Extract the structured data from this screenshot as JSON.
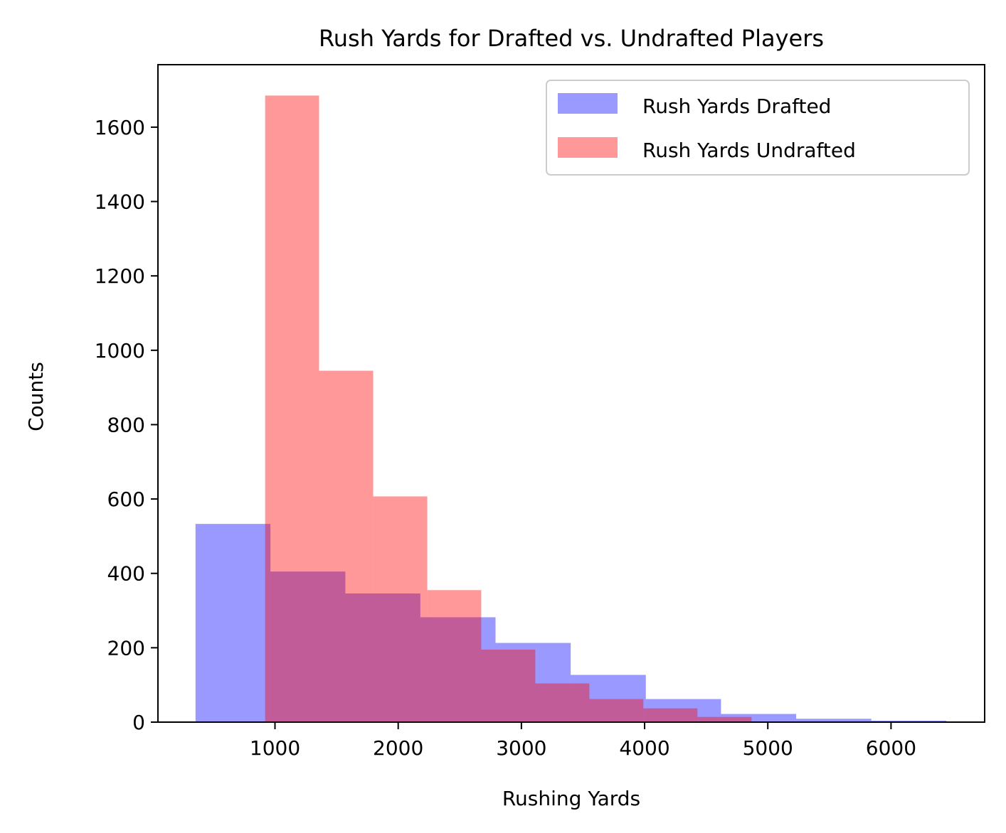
{
  "chart_data": {
    "type": "histogram",
    "title": "Rush Yards for Drafted vs. Undrafted Players",
    "xlabel": "Rushing Yards",
    "ylabel": "Counts",
    "xlim": [
      50,
      6760
    ],
    "ylim": [
      0,
      1768
    ],
    "xticks": [
      1000,
      2000,
      3000,
      4000,
      5000,
      6000
    ],
    "yticks": [
      0,
      200,
      400,
      600,
      800,
      1000,
      1200,
      1400,
      1600
    ],
    "grid": false,
    "legend": "top-right",
    "series": [
      {
        "name": "Rush Yards Drafted",
        "color": "#9999fe",
        "bins": [
          {
            "x0": 355,
            "x1": 963,
            "count": 533
          },
          {
            "x0": 963,
            "x1": 1571,
            "count": 405
          },
          {
            "x0": 1571,
            "x1": 2180,
            "count": 346
          },
          {
            "x0": 2180,
            "x1": 2790,
            "count": 282
          },
          {
            "x0": 2790,
            "x1": 3400,
            "count": 213
          },
          {
            "x0": 3400,
            "x1": 4010,
            "count": 127
          },
          {
            "x0": 4010,
            "x1": 4620,
            "count": 62
          },
          {
            "x0": 4620,
            "x1": 5230,
            "count": 22
          },
          {
            "x0": 5230,
            "x1": 5840,
            "count": 9
          },
          {
            "x0": 5840,
            "x1": 6450,
            "count": 4
          }
        ]
      },
      {
        "name": "Rush Yards Undrafted",
        "color": "#ff9999",
        "bins": [
          {
            "x0": 920,
            "x1": 1358,
            "count": 1685
          },
          {
            "x0": 1358,
            "x1": 1797,
            "count": 945
          },
          {
            "x0": 1797,
            "x1": 2236,
            "count": 607
          },
          {
            "x0": 2236,
            "x1": 2674,
            "count": 355
          },
          {
            "x0": 2674,
            "x1": 3113,
            "count": 195
          },
          {
            "x0": 3113,
            "x1": 3552,
            "count": 104
          },
          {
            "x0": 3552,
            "x1": 3990,
            "count": 62
          },
          {
            "x0": 3990,
            "x1": 4429,
            "count": 37
          },
          {
            "x0": 4429,
            "x1": 4868,
            "count": 14
          }
        ]
      }
    ]
  }
}
